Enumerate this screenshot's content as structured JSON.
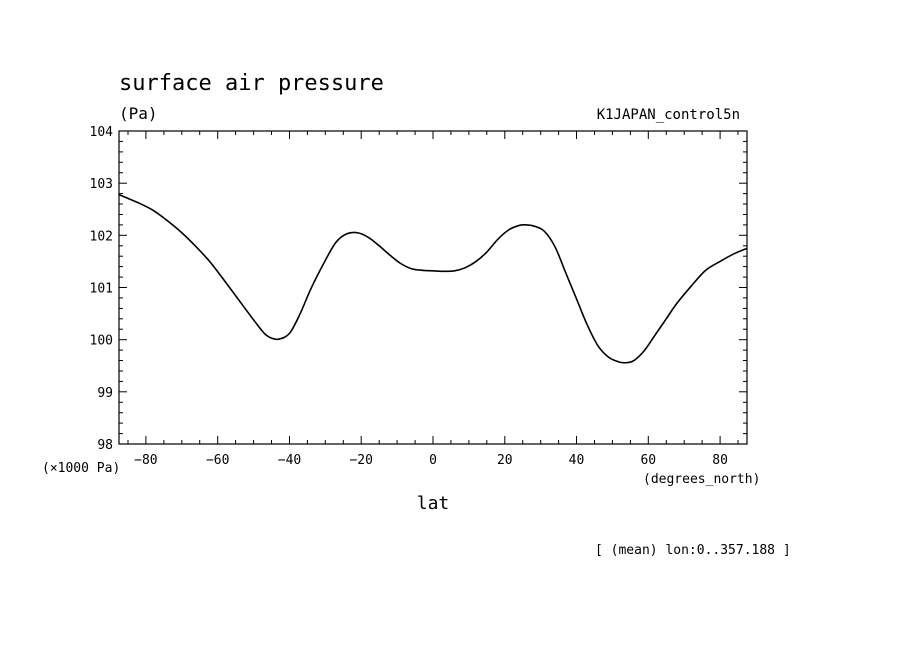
{
  "chart_data": {
    "type": "line",
    "title": "surface air pressure",
    "units_label": "(Pa)",
    "dataset_label": "K1JAPAN_control5n",
    "ylabel_scale": "(×1000 Pa)",
    "xlabel": "lat",
    "xunits_label": "(degrees_north)",
    "footnote": "[ (mean) lon:0..357.188 ]",
    "xlim": [
      -87.5,
      87.5
    ],
    "ylim": [
      98,
      104
    ],
    "xticks": [
      -80,
      -60,
      -40,
      -20,
      0,
      20,
      40,
      60,
      80
    ],
    "xtick_labels": [
      "−80",
      "−60",
      "−40",
      "−20",
      "0",
      "20",
      "40",
      "60",
      "80"
    ],
    "yticks": [
      98,
      99,
      100,
      101,
      102,
      103,
      104
    ],
    "ytick_labels": [
      "98",
      "99",
      "100",
      "101",
      "102",
      "103",
      "104"
    ],
    "grid": false,
    "series": [
      {
        "x": [
          -87.5,
          -82,
          -78,
          -74,
          -70,
          -66,
          -62,
          -58,
          -54,
          -50,
          -47,
          -45,
          -43,
          -40,
          -37,
          -34,
          -30,
          -27,
          -24,
          -21,
          -18,
          -15,
          -12,
          -9,
          -6,
          -3,
          0,
          3,
          6,
          9,
          12,
          15,
          18,
          21,
          24,
          26,
          28,
          31,
          34,
          37,
          40,
          43,
          46,
          49,
          52,
          54,
          56,
          59,
          62,
          65,
          68,
          72,
          76,
          80,
          84,
          87.5
        ],
        "y": [
          102.78,
          102.62,
          102.48,
          102.28,
          102.05,
          101.78,
          101.48,
          101.12,
          100.75,
          100.38,
          100.12,
          100.03,
          100.01,
          100.12,
          100.5,
          100.98,
          101.52,
          101.87,
          102.03,
          102.05,
          101.96,
          101.8,
          101.62,
          101.46,
          101.36,
          101.33,
          101.32,
          101.31,
          101.32,
          101.38,
          101.5,
          101.68,
          101.92,
          102.1,
          102.19,
          102.2,
          102.18,
          102.08,
          101.78,
          101.28,
          100.78,
          100.28,
          99.88,
          99.66,
          99.57,
          99.56,
          99.6,
          99.8,
          100.1,
          100.4,
          100.7,
          101.03,
          101.33,
          101.5,
          101.65,
          101.75
        ]
      }
    ]
  }
}
